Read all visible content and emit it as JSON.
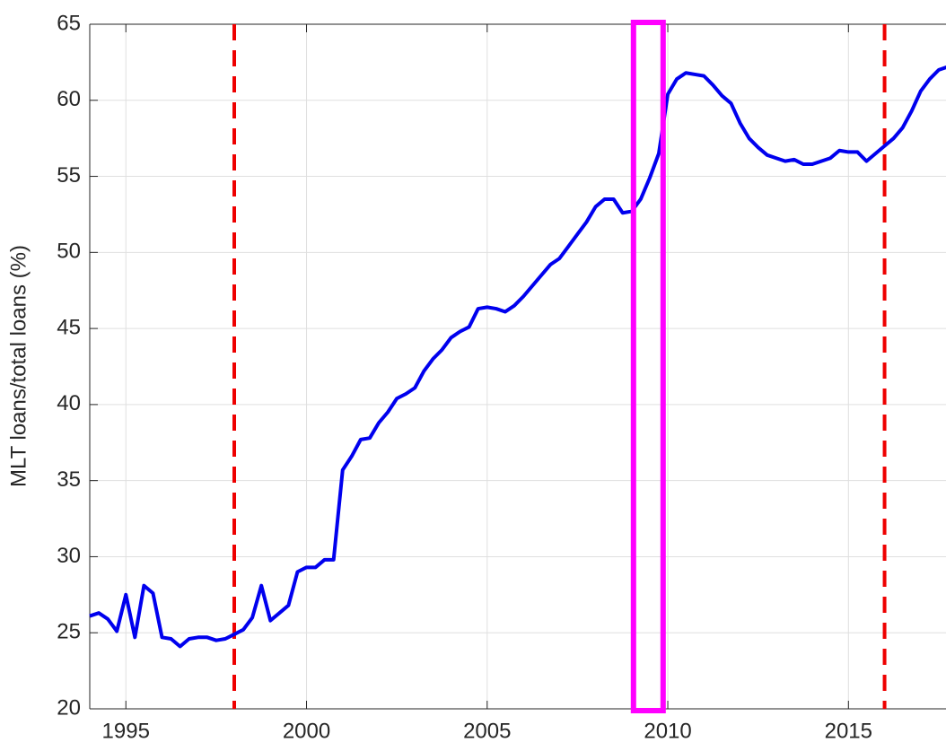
{
  "chart_data": {
    "type": "line",
    "y_label": "MLT loans/total loans (%)",
    "x": [
      1994.0,
      1994.25,
      1994.5,
      1994.75,
      1995.0,
      1995.25,
      1995.5,
      1995.75,
      1996.0,
      1996.25,
      1996.5,
      1996.75,
      1997.0,
      1997.25,
      1997.5,
      1997.75,
      1998.0,
      1998.25,
      1998.5,
      1998.75,
      1999.0,
      1999.25,
      1999.5,
      1999.75,
      2000.0,
      2000.25,
      2000.5,
      2000.75,
      2001.0,
      2001.25,
      2001.5,
      2001.75,
      2002.0,
      2002.25,
      2002.5,
      2002.75,
      2003.0,
      2003.25,
      2003.5,
      2003.75,
      2004.0,
      2004.25,
      2004.5,
      2004.75,
      2005.0,
      2005.25,
      2005.5,
      2005.75,
      2006.0,
      2006.25,
      2006.5,
      2006.75,
      2007.0,
      2007.25,
      2007.5,
      2007.75,
      2008.0,
      2008.25,
      2008.5,
      2008.75,
      2009.0,
      2009.25,
      2009.5,
      2009.75,
      2010.0,
      2010.25,
      2010.5,
      2010.75,
      2011.0,
      2011.25,
      2011.5,
      2011.75,
      2012.0,
      2012.25,
      2012.5,
      2012.75,
      2013.0,
      2013.25,
      2013.5,
      2013.75,
      2014.0,
      2014.25,
      2014.5,
      2014.75,
      2015.0,
      2015.25,
      2015.5,
      2015.75,
      2016.0,
      2016.25,
      2016.5,
      2016.75,
      2017.0,
      2017.25,
      2017.5,
      2017.75
    ],
    "series": [
      {
        "color": "#0000ee",
        "values": [
          26.1,
          26.3,
          25.9,
          25.1,
          27.5,
          24.7,
          28.1,
          27.6,
          24.7,
          24.6,
          24.1,
          24.6,
          24.7,
          24.7,
          24.5,
          24.6,
          24.9,
          25.2,
          26.0,
          28.1,
          25.8,
          26.3,
          26.8,
          29.0,
          29.3,
          29.3,
          29.8,
          29.8,
          35.7,
          36.6,
          37.7,
          37.8,
          38.8,
          39.5,
          40.4,
          40.7,
          41.1,
          42.2,
          43.0,
          43.6,
          44.4,
          44.8,
          45.1,
          46.3,
          46.4,
          46.3,
          46.1,
          46.5,
          47.1,
          47.8,
          48.5,
          49.2,
          49.6,
          50.4,
          51.2,
          52.0,
          53.0,
          53.5,
          53.5,
          52.6,
          52.7,
          53.5,
          54.9,
          56.5,
          60.4,
          61.4,
          61.8,
          61.7,
          61.6,
          61.0,
          60.3,
          59.8,
          58.5,
          57.5,
          56.9,
          56.4,
          56.2,
          56.0,
          56.1,
          55.8,
          55.8,
          56.0,
          56.2,
          56.7,
          56.6,
          56.6,
          56.0,
          56.5,
          57.0,
          57.5,
          58.2,
          59.3,
          60.6,
          61.4,
          62.0,
          62.2
        ]
      }
    ],
    "xlim": [
      1994.0,
      2017.75
    ],
    "xticks": [
      1995,
      2000,
      2005,
      2010,
      2015
    ],
    "ylim": [
      20,
      65
    ],
    "yticks": [
      20,
      25,
      30,
      35,
      40,
      45,
      50,
      55,
      60,
      65
    ],
    "grid": true,
    "vlines": [
      1998,
      2016
    ],
    "vline_color": "#ee0000",
    "highlight": {
      "x": [
        2009.05,
        2009.87
      ],
      "color": "#ff00ff"
    }
  }
}
